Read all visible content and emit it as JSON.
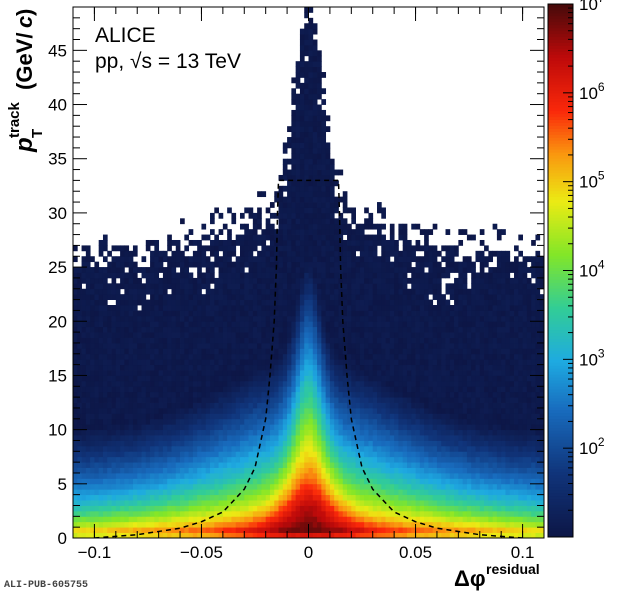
{
  "chart_data": {
    "type": "heatmap",
    "annotation": {
      "experiment": "ALICE",
      "system": "pp, √s = 13 TeV"
    },
    "xlabel": "Δφ",
    "xlabel_sup": "residual",
    "ylabel": "p",
    "ylabel_sub": "T",
    "ylabel_sup": "track",
    "ylabel_units": "(GeV/",
    "ylabel_units_c": "c",
    "ylabel_units_end": ")",
    "xlim": [
      -0.11,
      0.11
    ],
    "ylim": [
      0,
      49
    ],
    "x_ticks": [
      {
        "value": -0.1,
        "label": "−0.1"
      },
      {
        "value": -0.05,
        "label": "−0.05"
      },
      {
        "value": 0,
        "label": "0"
      },
      {
        "value": 0.05,
        "label": "0.05"
      },
      {
        "value": 0.1,
        "label": "0.1"
      }
    ],
    "y_ticks": [
      {
        "value": 0,
        "label": "0"
      },
      {
        "value": 5,
        "label": "5"
      },
      {
        "value": 10,
        "label": "10"
      },
      {
        "value": 15,
        "label": "15"
      },
      {
        "value": 20,
        "label": "20"
      },
      {
        "value": 25,
        "label": "25"
      },
      {
        "value": 30,
        "label": "30"
      },
      {
        "value": 35,
        "label": "35"
      },
      {
        "value": 40,
        "label": "40"
      },
      {
        "value": 45,
        "label": "45"
      }
    ],
    "colorbar": {
      "scale": "log",
      "range": [
        10,
        10000000
      ],
      "ticks": [
        {
          "value": 100,
          "base": "10",
          "exp": "2"
        },
        {
          "value": 1000,
          "base": "10",
          "exp": "3"
        },
        {
          "value": 10000,
          "base": "10",
          "exp": "4"
        },
        {
          "value": 100000,
          "base": "10",
          "exp": "5"
        },
        {
          "value": 1000000,
          "base": "10",
          "exp": "6"
        },
        {
          "value": 10000000,
          "base": "10",
          "exp": "7"
        }
      ]
    },
    "density_model": {
      "peak_counts": 10000000,
      "core_peak_pt": 1.5,
      "narrow_width_deltaphi": 0.006,
      "wide_width_deltaphi": 0.05,
      "max_pt_center": 45,
      "max_pt_edge": 27
    },
    "selection_cut_curve": {
      "style": "dashed",
      "points": [
        [
          -0.1,
          0.0
        ],
        [
          -0.08,
          0.3
        ],
        [
          -0.06,
          0.9
        ],
        [
          -0.05,
          1.5
        ],
        [
          -0.04,
          2.4
        ],
        [
          -0.03,
          4.5
        ],
        [
          -0.025,
          6.5
        ],
        [
          -0.02,
          11
        ],
        [
          -0.018,
          15
        ],
        [
          -0.016,
          20
        ],
        [
          -0.015,
          25
        ],
        [
          -0.0145,
          30
        ],
        [
          -0.014,
          33
        ],
        [
          0.014,
          33
        ],
        [
          0.0145,
          30
        ],
        [
          0.015,
          25
        ],
        [
          0.016,
          20
        ],
        [
          0.018,
          15
        ],
        [
          0.02,
          11
        ],
        [
          0.025,
          6.5
        ],
        [
          0.03,
          4.5
        ],
        [
          0.04,
          2.4
        ],
        [
          0.05,
          1.5
        ],
        [
          0.06,
          0.9
        ],
        [
          0.08,
          0.3
        ],
        [
          0.1,
          0.0
        ]
      ]
    }
  },
  "footer": {
    "publication_id": "ALI-PUB-605755"
  }
}
